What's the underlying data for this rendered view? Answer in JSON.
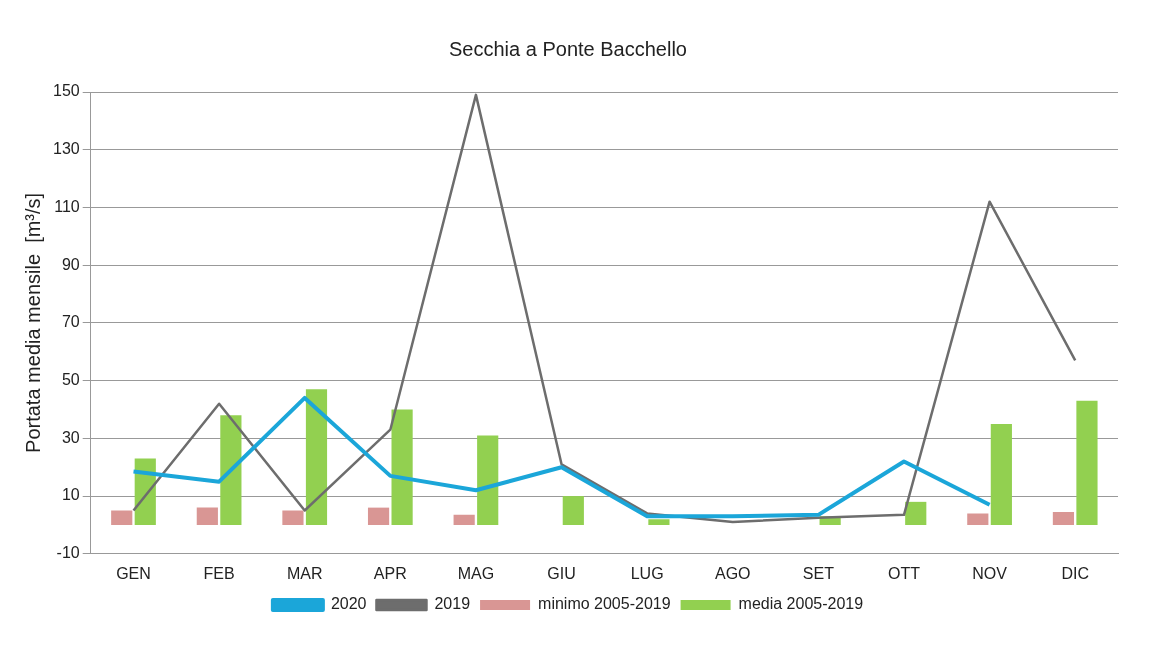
{
  "chart_data": {
    "type": "bar",
    "title": "Secchia a Ponte Bacchello",
    "ylabel": "Portata media mensile  [m³/s]",
    "categories": [
      "GEN",
      "FEB",
      "MAR",
      "APR",
      "MAG",
      "GIU",
      "LUG",
      "AGO",
      "SET",
      "OTT",
      "NOV",
      "DIC"
    ],
    "series": [
      {
        "name": "minimo 2005-2019",
        "color": "#d99694",
        "values": [
          5,
          6,
          5,
          6,
          3.5,
          0,
          0,
          0,
          0,
          0,
          4,
          4.5
        ]
      },
      {
        "name": "media 2005-2019",
        "color": "#92d050",
        "values": [
          23,
          38,
          47,
          40,
          31,
          10,
          2,
          0,
          3,
          8,
          35,
          43
        ]
      },
      {
        "name": "2020",
        "type": "line",
        "color": "#1ba6d9",
        "values": [
          18.5,
          15,
          44,
          17,
          12,
          20,
          3,
          3,
          3.5,
          22,
          7,
          null
        ]
      },
      {
        "name": "2019",
        "type": "line",
        "color": "#6d6d6d",
        "values": [
          5,
          42,
          5,
          33,
          149,
          21,
          4,
          1,
          2.5,
          3.5,
          112,
          57
        ]
      }
    ],
    "ylim": [
      -10,
      150
    ],
    "yticks": [
      -10,
      10,
      30,
      50,
      70,
      90,
      110,
      130,
      150
    ],
    "grid": "y",
    "legend": "bottom",
    "marker": "none"
  }
}
